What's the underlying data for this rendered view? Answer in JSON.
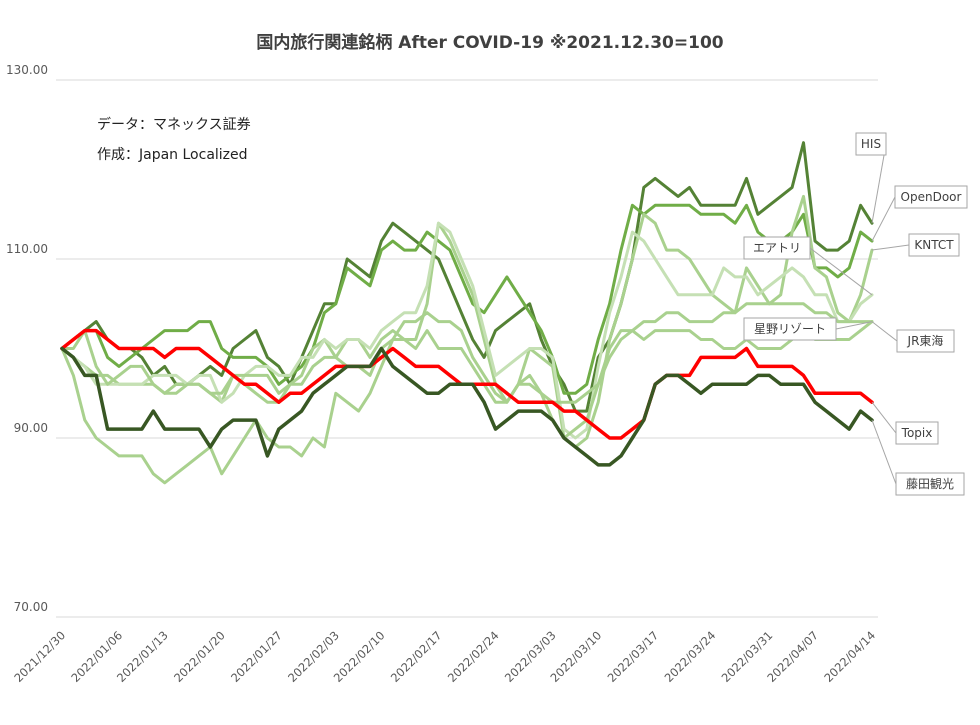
{
  "chart_data": {
    "type": "line",
    "title": "国内旅行関連銘柄 After COVID-19 ※2021.12.30=100",
    "annotations": [
      "データ：マネックス証券",
      "作成：Japan Localized"
    ],
    "ylim": [
      70,
      130
    ],
    "yticks": [
      "70.00",
      "90.00",
      "110.00",
      "130.00"
    ],
    "xticks": [
      "2021/12/30",
      "2022/01/06",
      "2022/01/13",
      "2022/01/20",
      "2022/01/27",
      "2022/02/03",
      "2022/02/10",
      "2022/02/17",
      "2022/02/24",
      "2022/03/03",
      "2022/03/10",
      "2022/03/17",
      "2022/03/24",
      "2022/03/31",
      "2022/04/07",
      "2022/04/14"
    ],
    "x_count": 72,
    "grid": true,
    "legend": "callout labels at right",
    "series": [
      {
        "name": "HIS",
        "color": "#548235",
        "width": 3,
        "values": [
          100,
          101,
          102,
          103,
          101,
          100,
          100,
          99,
          97,
          98,
          96,
          96,
          97,
          98,
          97,
          100,
          101,
          102,
          99,
          98,
          96,
          99,
          102,
          105,
          105,
          110,
          109,
          108,
          112,
          114,
          113,
          112,
          111,
          110,
          107,
          104,
          101,
          99,
          102,
          103,
          104,
          105,
          101,
          98,
          96,
          93,
          93,
          99,
          101,
          105,
          110,
          118,
          119,
          118,
          117,
          118,
          116,
          116,
          116,
          116,
          119,
          115,
          116,
          117,
          118,
          123,
          112,
          111,
          111,
          112,
          116,
          114
        ]
      },
      {
        "name": "OpenDoor",
        "color": "#70AD47",
        "width": 3,
        "values": [
          100,
          101,
          102,
          102,
          99,
          98,
          99,
          100,
          101,
          102,
          102,
          102,
          103,
          103,
          100,
          99,
          99,
          99,
          98,
          96,
          97,
          98,
          100,
          104,
          105,
          109,
          108,
          107,
          111,
          112,
          111,
          111,
          113,
          112,
          111,
          108,
          105,
          104,
          106,
          108,
          106,
          104,
          102,
          99,
          95,
          95,
          96,
          101,
          105,
          111,
          116,
          115,
          116,
          116,
          116,
          116,
          115,
          115,
          115,
          114,
          116,
          113,
          112,
          112,
          113,
          115,
          109,
          109,
          108,
          109,
          113,
          112
        ]
      },
      {
        "name": "KNTCT",
        "color": "#A9D18E",
        "width": 3,
        "values": [
          100,
          99,
          98,
          97,
          97,
          96,
          96,
          96,
          96,
          95,
          96,
          96,
          96,
          95,
          94,
          97,
          96,
          95,
          94,
          94,
          96,
          97,
          100,
          101,
          99,
          101,
          101,
          99,
          101,
          102,
          101,
          101,
          105,
          114,
          112,
          109,
          106,
          101,
          96,
          94,
          96,
          100,
          99,
          98,
          90,
          89,
          90,
          94,
          101,
          105,
          110,
          115,
          114,
          111,
          111,
          110,
          108,
          106,
          105,
          104,
          109,
          107,
          105,
          106,
          113,
          117,
          109,
          108,
          104,
          103,
          106,
          111
        ]
      },
      {
        "name": "エアトリ",
        "color": "#C5E0B4",
        "width": 3,
        "values": [
          100,
          99,
          98,
          96,
          96,
          96,
          96,
          96,
          97,
          97,
          97,
          96,
          97,
          97,
          94,
          95,
          97,
          98,
          98,
          97,
          97,
          99,
          99,
          101,
          100,
          101,
          101,
          100,
          102,
          103,
          104,
          104,
          107,
          114,
          113,
          110,
          107,
          102,
          97,
          98,
          99,
          100,
          100,
          99,
          91,
          90,
          91,
          98,
          104,
          108,
          113,
          112,
          110,
          108,
          106,
          106,
          106,
          106,
          109,
          108,
          108,
          106,
          107,
          108,
          109,
          108,
          106,
          106,
          103,
          103,
          105,
          106
        ]
      },
      {
        "name": "JR東海",
        "color": "#A9D18E",
        "width": 3,
        "values": [
          100,
          97,
          92,
          90,
          89,
          88,
          88,
          88,
          86,
          85,
          86,
          87,
          88,
          89,
          86,
          88,
          90,
          92,
          90,
          89,
          89,
          88,
          90,
          89,
          95,
          94,
          93,
          95,
          98,
          101,
          103,
          103,
          104,
          103,
          103,
          102,
          99,
          97,
          95,
          94,
          96,
          96,
          95,
          94,
          94,
          94,
          95,
          96,
          99,
          101,
          102,
          103,
          103,
          104,
          104,
          103,
          103,
          103,
          104,
          104,
          105,
          105,
          105,
          105,
          105,
          105,
          104,
          104,
          103,
          103,
          103,
          103
        ]
      },
      {
        "name": "星野リゾート",
        "color": "#A9D18E",
        "width": 3,
        "values": [
          100,
          100,
          102,
          98,
          96,
          97,
          98,
          98,
          96,
          95,
          95,
          96,
          96,
          95,
          95,
          97,
          97,
          97,
          97,
          95,
          96,
          96,
          98,
          99,
          99,
          98,
          98,
          97,
          100,
          101,
          101,
          100,
          102,
          100,
          100,
          100,
          98,
          96,
          94,
          94,
          96,
          97,
          95,
          92,
          90,
          91,
          92,
          96,
          100,
          102,
          102,
          101,
          102,
          102,
          102,
          102,
          101,
          101,
          100,
          100,
          101,
          100,
          100,
          100,
          101,
          102,
          101,
          101,
          101,
          101,
          102,
          103
        ]
      },
      {
        "name": "Topix",
        "color": "#FF0000",
        "width": 3.5,
        "values": [
          100,
          101,
          102,
          102,
          101,
          100,
          100,
          100,
          100,
          99,
          100,
          100,
          100,
          99,
          98,
          97,
          96,
          96,
          95,
          94,
          95,
          95,
          96,
          97,
          98,
          98,
          98,
          98,
          99,
          100,
          99,
          98,
          98,
          98,
          97,
          96,
          96,
          96,
          96,
          95,
          94,
          94,
          94,
          94,
          93,
          93,
          92,
          91,
          90,
          90,
          91,
          92,
          96,
          97,
          97,
          97,
          99,
          99,
          99,
          99,
          100,
          98,
          98,
          98,
          98,
          97,
          95,
          95,
          95,
          95,
          95,
          94
        ]
      },
      {
        "name": "藤田観光",
        "color": "#385723",
        "width": 3.5,
        "values": [
          100,
          99,
          97,
          97,
          91,
          91,
          91,
          91,
          93,
          91,
          91,
          91,
          91,
          89,
          91,
          92,
          92,
          92,
          88,
          91,
          92,
          93,
          95,
          96,
          97,
          98,
          98,
          98,
          100,
          98,
          97,
          96,
          95,
          95,
          96,
          96,
          96,
          94,
          91,
          92,
          93,
          93,
          93,
          92,
          90,
          89,
          88,
          87,
          87,
          88,
          90,
          92,
          96,
          97,
          97,
          96,
          95,
          96,
          96,
          96,
          96,
          97,
          97,
          96,
          96,
          96,
          94,
          93,
          92,
          91,
          93,
          92
        ]
      }
    ],
    "callouts": [
      {
        "series": "HIS",
        "label": "HIS"
      },
      {
        "series": "OpenDoor",
        "label": "OpenDoor"
      },
      {
        "series": "KNTCT",
        "label": "KNTCT"
      },
      {
        "series": "エアトリ",
        "label": "エアトリ"
      },
      {
        "series": "JR東海",
        "label": "JR東海"
      },
      {
        "series": "星野リゾート",
        "label": "星野リゾート"
      },
      {
        "series": "Topix",
        "label": "Topix"
      },
      {
        "series": "藤田観光",
        "label": "藤田観光"
      }
    ]
  }
}
